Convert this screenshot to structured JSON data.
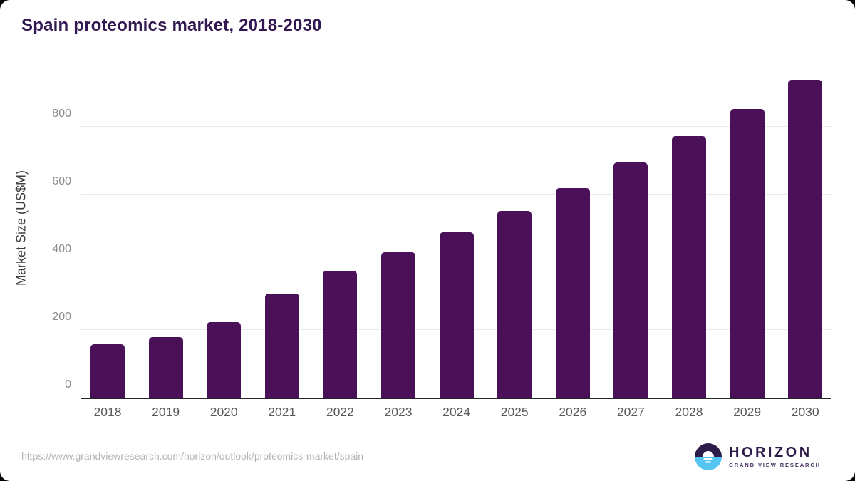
{
  "title": "Spain proteomics market, 2018-2030",
  "footer": {
    "source_url": "https://www.grandviewresearch.com/horizon/outlook/proteomics-market/spain"
  },
  "logo": {
    "name": "HORIZON",
    "subtitle": "GRAND VIEW RESEARCH",
    "icon": "sunset-circle-icon",
    "purple": "#2d1b49",
    "blue": "#54c5f0"
  },
  "colors": {
    "bar": "#4a1159",
    "title_text": "#321750",
    "gridline": "#e9e9e9",
    "axis_line": "#262626",
    "x_tick_text": "#595959",
    "y_tick_text": "#8c8c8c",
    "url_text": "#b3b3b3"
  },
  "chart_data": {
    "type": "bar",
    "title": "Spain proteomics market, 2018-2030",
    "categories": [
      "2018",
      "2019",
      "2020",
      "2021",
      "2022",
      "2023",
      "2024",
      "2025",
      "2026",
      "2027",
      "2028",
      "2029",
      "2030"
    ],
    "values": [
      158,
      178,
      223,
      307,
      375,
      430,
      488,
      552,
      620,
      695,
      773,
      853,
      940
    ],
    "xlabel": "",
    "ylabel": "Market Size (US$M)",
    "ylim": [
      0,
      965
    ],
    "yticks": [
      0,
      200,
      400,
      600,
      800
    ],
    "grid": true,
    "legend": false,
    "bar_color": "#4a1159"
  }
}
